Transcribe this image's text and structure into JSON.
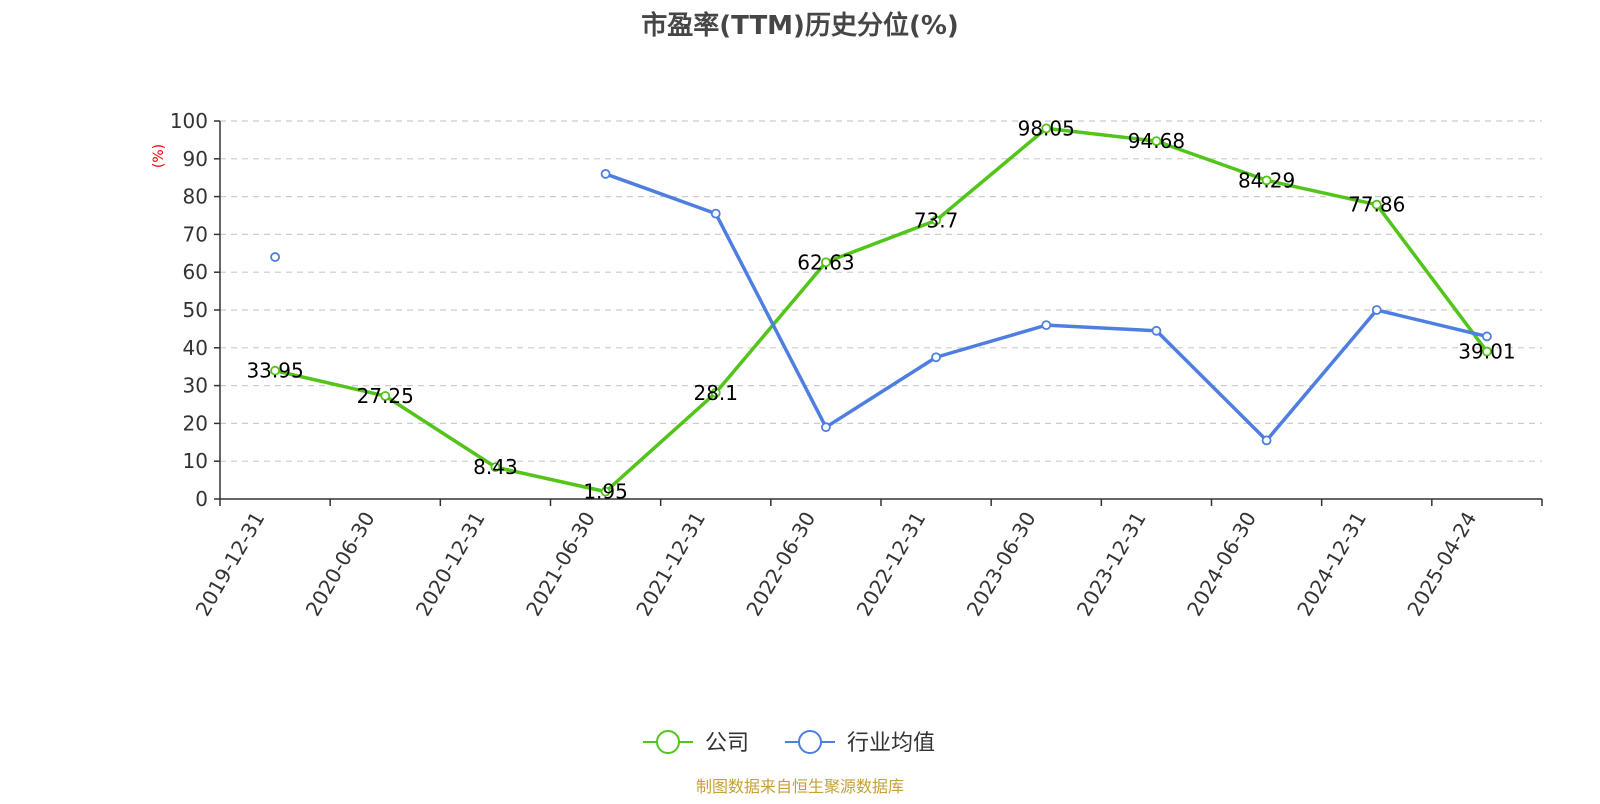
{
  "chart_data": {
    "type": "line",
    "title": "市盈率(TTM)历史分位(%)",
    "ylabel": "(%)",
    "xlabel": "",
    "ylim": [
      0,
      100
    ],
    "yticks": [
      0,
      10,
      20,
      30,
      40,
      50,
      60,
      70,
      80,
      90,
      100
    ],
    "grid": "horizontal-dashed",
    "legend_position": "bottom-center",
    "categories": [
      "2019-12-31",
      "2020-06-30",
      "2020-12-31",
      "2021-06-30",
      "2021-12-31",
      "2022-06-30",
      "2022-12-31",
      "2023-06-30",
      "2023-12-31",
      "2024-06-30",
      "2024-12-31",
      "2025-04-24"
    ],
    "series": [
      {
        "name": "公司",
        "color": "#52c41a",
        "show_labels": true,
        "values": [
          33.95,
          27.25,
          8.43,
          1.95,
          28.1,
          62.63,
          73.7,
          98.05,
          94.68,
          84.29,
          77.86,
          39.01
        ]
      },
      {
        "name": "行业均值",
        "color": "#4e7fe0",
        "show_labels": false,
        "values": [
          64,
          null,
          null,
          86,
          75.5,
          19,
          37.5,
          46,
          44.5,
          15.5,
          50,
          43
        ]
      }
    ],
    "source": "制图数据来自恒生聚源数据库"
  }
}
